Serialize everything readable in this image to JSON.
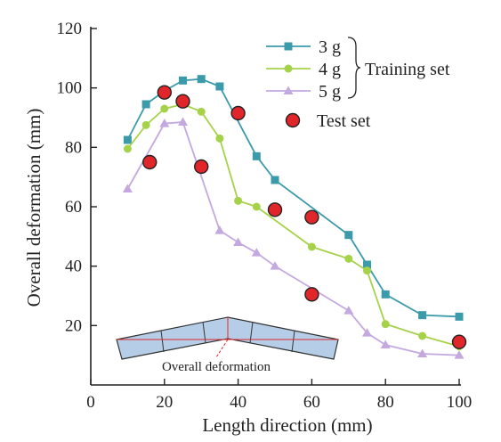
{
  "chart_data": {
    "type": "line",
    "xlabel": "Length direction (mm)",
    "ylabel": "Overall deformation (mm)",
    "xlim": [
      0,
      100
    ],
    "ylim": [
      0,
      120
    ],
    "xticks": [
      "0",
      "20",
      "40",
      "60",
      "80",
      "100"
    ],
    "yticks": [
      "20",
      "40",
      "60",
      "80",
      "100",
      "120"
    ],
    "grid": false,
    "legend_position": "top-right",
    "series": [
      {
        "name": "3 g",
        "group": "Training set",
        "marker": "square",
        "color": "#3b9bab",
        "x": [
          10,
          15,
          20,
          25,
          30,
          35,
          45,
          50,
          70,
          75,
          80,
          90,
          100
        ],
        "y": [
          82.5,
          94.5,
          99,
          102.5,
          103,
          100.5,
          77,
          69,
          50.5,
          40.5,
          30.5,
          23.5,
          23
        ]
      },
      {
        "name": "4 g",
        "group": "Training set",
        "marker": "circle",
        "color": "#a6d24a",
        "x": [
          10,
          15,
          20,
          25,
          30,
          35,
          40,
          45,
          60,
          70,
          75,
          80,
          90,
          100
        ],
        "y": [
          79.5,
          87.5,
          93,
          94.5,
          92,
          83,
          62,
          60,
          46.5,
          42.5,
          38.5,
          20.5,
          16.5,
          13
        ]
      },
      {
        "name": "5 g",
        "group": "Training set",
        "marker": "triangle",
        "color": "#c4a8e0",
        "x": [
          10,
          20,
          25,
          35,
          40,
          45,
          50,
          70,
          75,
          80,
          90,
          100
        ],
        "y": [
          66,
          88,
          88.5,
          52,
          48,
          44.5,
          40,
          25,
          17.5,
          13.5,
          10.5,
          10
        ]
      },
      {
        "name": "Test set",
        "marker": "circle-large",
        "color": "#e0262a",
        "x": [
          16,
          20,
          25,
          30,
          40,
          50,
          60,
          60,
          100
        ],
        "y": [
          75,
          98.5,
          95.5,
          73.5,
          91.5,
          59,
          56.5,
          30.5,
          14.5
        ]
      }
    ],
    "legend": {
      "entries": [
        "3 g",
        "4 g",
        "5 g",
        "Test set"
      ],
      "group_label": "Training set"
    },
    "inset": {
      "caption": "Overall deformation"
    }
  },
  "colors": {
    "axis": "#222222",
    "inset_fill": "#b5cde6",
    "inset_stroke": "#333333",
    "inset_line": "#e0262a",
    "marker_outline": "#222222"
  }
}
